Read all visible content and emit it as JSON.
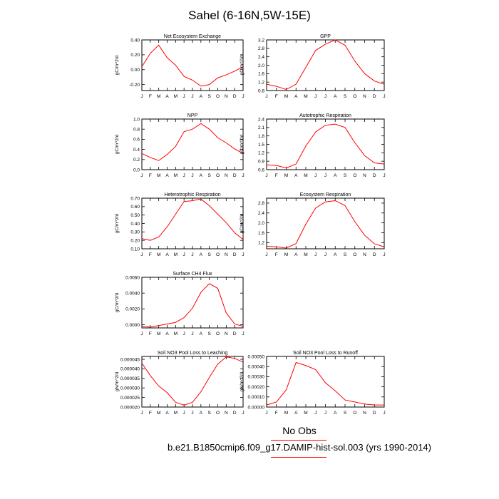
{
  "title": "Sahel (6-16N,5W-15E)",
  "legend": {
    "label": "No Obs",
    "line_color": "#ff0000"
  },
  "caption": "b.e21.B1850cmip6.f09_g17.DAMIP-hist-sol.003 (yrs 1990-2014)",
  "months": [
    "J",
    "F",
    "M",
    "A",
    "M",
    "J",
    "J",
    "A",
    "S",
    "O",
    "N",
    "D",
    "J"
  ],
  "chart_data": [
    {
      "type": "line",
      "title": "Net Ecosystem Exchange",
      "ylabel": "gC/m^2/d",
      "ylim": [
        -0.28,
        0.4
      ],
      "yticks": [
        -0.2,
        0.0,
        0.2,
        0.4
      ],
      "yticklabels": [
        "-0.20",
        "0.00",
        "0.20",
        "0.40"
      ],
      "color": "#ff0000",
      "values": [
        0.04,
        0.22,
        0.33,
        0.16,
        0.06,
        -0.09,
        -0.14,
        -0.22,
        -0.2,
        -0.11,
        -0.07,
        -0.02,
        0.04
      ]
    },
    {
      "type": "line",
      "title": "GPP",
      "ylabel": "gC/m^2/d",
      "ylim": [
        0.8,
        3.2
      ],
      "yticks": [
        0.8,
        1.2,
        1.6,
        2.0,
        2.4,
        2.8,
        3.2
      ],
      "yticklabels": [
        "0.8",
        "1.2",
        "1.6",
        "2.0",
        "2.4",
        "2.8",
        "3.2"
      ],
      "color": "#ff0000",
      "values": [
        1.1,
        1.0,
        0.85,
        1.1,
        1.9,
        2.7,
        3.0,
        3.2,
        2.95,
        2.2,
        1.6,
        1.25,
        1.1
      ]
    },
    {
      "type": "line",
      "title": "NPP",
      "ylabel": "gC/m^2/d",
      "ylim": [
        0.0,
        1.0
      ],
      "yticks": [
        0.0,
        0.2,
        0.4,
        0.6,
        0.8,
        1.0
      ],
      "yticklabels": [
        "0.0",
        "0.2",
        "0.4",
        "0.6",
        "0.8",
        "1.0"
      ],
      "color": "#ff0000",
      "values": [
        0.32,
        0.24,
        0.18,
        0.3,
        0.46,
        0.75,
        0.8,
        0.91,
        0.8,
        0.63,
        0.53,
        0.41,
        0.32
      ]
    },
    {
      "type": "line",
      "title": "Autotrophic Respiration",
      "ylabel": "gC/m^2/d",
      "ylim": [
        0.6,
        2.4
      ],
      "yticks": [
        0.6,
        0.9,
        1.2,
        1.5,
        1.8,
        2.1,
        2.4
      ],
      "yticklabels": [
        "0.6",
        "0.9",
        "1.2",
        "1.5",
        "1.8",
        "2.1",
        "2.4"
      ],
      "color": "#ff0000",
      "values": [
        0.77,
        0.75,
        0.66,
        0.8,
        1.44,
        1.94,
        2.18,
        2.22,
        2.1,
        1.56,
        1.1,
        0.84,
        0.8
      ]
    },
    {
      "type": "line",
      "title": "Heterotrophic Respiration",
      "ylabel": "gC/m^2/d",
      "ylim": [
        0.1,
        0.7
      ],
      "yticks": [
        0.1,
        0.2,
        0.3,
        0.4,
        0.5,
        0.6,
        0.7
      ],
      "yticklabels": [
        "0.10",
        "0.20",
        "0.30",
        "0.40",
        "0.50",
        "0.60",
        "0.70"
      ],
      "color": "#ff0000",
      "values": [
        0.22,
        0.2,
        0.24,
        0.36,
        0.51,
        0.66,
        0.67,
        0.69,
        0.61,
        0.51,
        0.41,
        0.29,
        0.21
      ]
    },
    {
      "type": "line",
      "title": "Ecosystem Respiration",
      "ylabel": "gC/m^2/d",
      "ylim": [
        0.95,
        3.0
      ],
      "yticks": [
        1.2,
        1.6,
        2.0,
        2.4,
        2.8
      ],
      "yticklabels": [
        "1.2",
        "1.6",
        "2.0",
        "2.4",
        "2.8"
      ],
      "color": "#ff0000",
      "values": [
        1.05,
        1.03,
        0.98,
        1.16,
        1.95,
        2.6,
        2.85,
        2.9,
        2.7,
        2.05,
        1.5,
        1.15,
        1.03
      ]
    },
    {
      "type": "line",
      "title": "Surface CH4 Flux",
      "ylabel": "gC/m^2/d",
      "ylim": [
        -0.0004,
        0.006
      ],
      "yticks": [
        0.0,
        0.002,
        0.004,
        0.006
      ],
      "yticklabels": [
        "0.0000",
        "0.0020",
        "0.0040",
        "0.0060"
      ],
      "color": "#ff0000",
      "values": [
        -0.0002,
        -0.0003,
        -0.0001,
        0.0001,
        0.0003,
        0.0009,
        0.0021,
        0.0041,
        0.0052,
        0.0046,
        0.0015,
        0.0001,
        -0.0002
      ]
    },
    {
      "type": "line",
      "title": "Soil NO3 Pool Loss to Leaching",
      "ylabel": "gN/m^2/d",
      "ylim": [
        2e-05,
        4.65e-05
      ],
      "yticks": [
        2e-05,
        2.5e-05,
        3e-05,
        3.5e-05,
        4e-05,
        4.5e-05
      ],
      "yticklabels": [
        "0.000020",
        "0.000025",
        "0.000030",
        "0.000035",
        "0.000040",
        "0.000045"
      ],
      "color": "#ff0000",
      "values": [
        4.3e-05,
        3.65e-05,
        3.1e-05,
        2.75e-05,
        2.25e-05,
        2.1e-05,
        2.25e-05,
        2.8e-05,
        3.55e-05,
        4.25e-05,
        4.62e-05,
        4.55e-05,
        4.35e-05
      ]
    },
    {
      "type": "line",
      "title": "Soil NO3 Pool Loss to Runoff",
      "ylabel": "gN/m^2/d",
      "ylim": [
        0.0,
        0.0005
      ],
      "yticks": [
        0.0,
        0.0001,
        0.0002,
        0.0003,
        0.0004,
        0.0005
      ],
      "yticklabels": [
        "0.00000",
        "0.00010",
        "0.00020",
        "0.00030",
        "0.00040",
        "0.00050"
      ],
      "color": "#ff0000",
      "values": [
        2e-05,
        5e-05,
        0.00017,
        0.00044,
        0.00041,
        0.00037,
        0.00024,
        0.00016,
        7e-05,
        5e-05,
        3e-05,
        2e-05,
        2e-05
      ]
    }
  ]
}
